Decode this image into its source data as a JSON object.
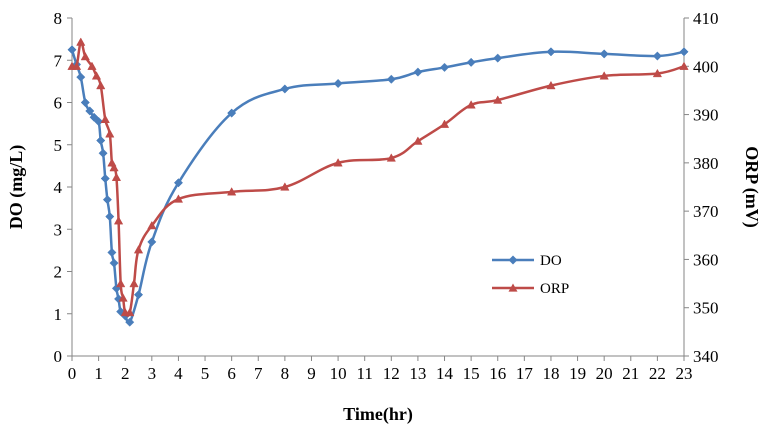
{
  "chart_data": {
    "type": "line",
    "xlabel": "Time(hr)",
    "ylabel_left": "DO (mg/L)",
    "ylabel_right": "ORP (mV)",
    "xlim": [
      0,
      23
    ],
    "ylim_left": [
      0,
      8
    ],
    "ylim_right": [
      340,
      410
    ],
    "x_ticks": [
      0,
      1,
      2,
      3,
      4,
      5,
      6,
      7,
      8,
      9,
      10,
      11,
      12,
      13,
      14,
      15,
      16,
      17,
      18,
      19,
      20,
      21,
      22,
      23
    ],
    "y_ticks_left": [
      0,
      1,
      2,
      3,
      4,
      5,
      6,
      7,
      8
    ],
    "y_ticks_right": [
      340,
      350,
      360,
      370,
      380,
      390,
      400,
      410
    ],
    "grid": false,
    "legend_position": "center-right",
    "series": [
      {
        "name": "DO",
        "axis": "left",
        "color": "#4a7ebb",
        "marker": "diamond",
        "x": [
          0,
          0.17,
          0.33,
          0.5,
          0.67,
          0.83,
          1.0,
          1.08,
          1.17,
          1.25,
          1.33,
          1.42,
          1.5,
          1.58,
          1.67,
          1.75,
          1.83,
          2.0,
          2.17,
          2.5,
          3,
          4,
          6,
          8,
          10,
          12,
          13,
          14,
          15,
          16,
          18,
          20,
          22,
          23
        ],
        "values": [
          7.25,
          6.9,
          6.6,
          6.0,
          5.8,
          5.65,
          5.55,
          5.1,
          4.8,
          4.2,
          3.7,
          3.3,
          2.45,
          2.2,
          1.6,
          1.35,
          1.05,
          0.95,
          0.8,
          1.45,
          2.7,
          4.1,
          5.75,
          6.32,
          6.45,
          6.55,
          6.72,
          6.83,
          6.95,
          7.05,
          7.2,
          7.15,
          7.1,
          7.2
        ]
      },
      {
        "name": "ORP",
        "axis": "right",
        "color": "#be4b48",
        "marker": "triangle",
        "x": [
          0,
          0.17,
          0.33,
          0.5,
          0.75,
          0.92,
          1.08,
          1.25,
          1.42,
          1.5,
          1.58,
          1.67,
          1.75,
          1.83,
          1.92,
          2.0,
          2.17,
          2.33,
          2.5,
          3,
          4,
          6,
          8,
          10,
          12,
          13,
          14,
          15,
          16,
          18,
          20,
          22,
          23
        ],
        "values": [
          400,
          400,
          405,
          402,
          400,
          398,
          396,
          389,
          386,
          380,
          379,
          377,
          368,
          355,
          352,
          349,
          349,
          355,
          362,
          367,
          372.5,
          374,
          375,
          380,
          381,
          384.5,
          388,
          392,
          393,
          396,
          398,
          398.5,
          400
        ]
      }
    ]
  }
}
